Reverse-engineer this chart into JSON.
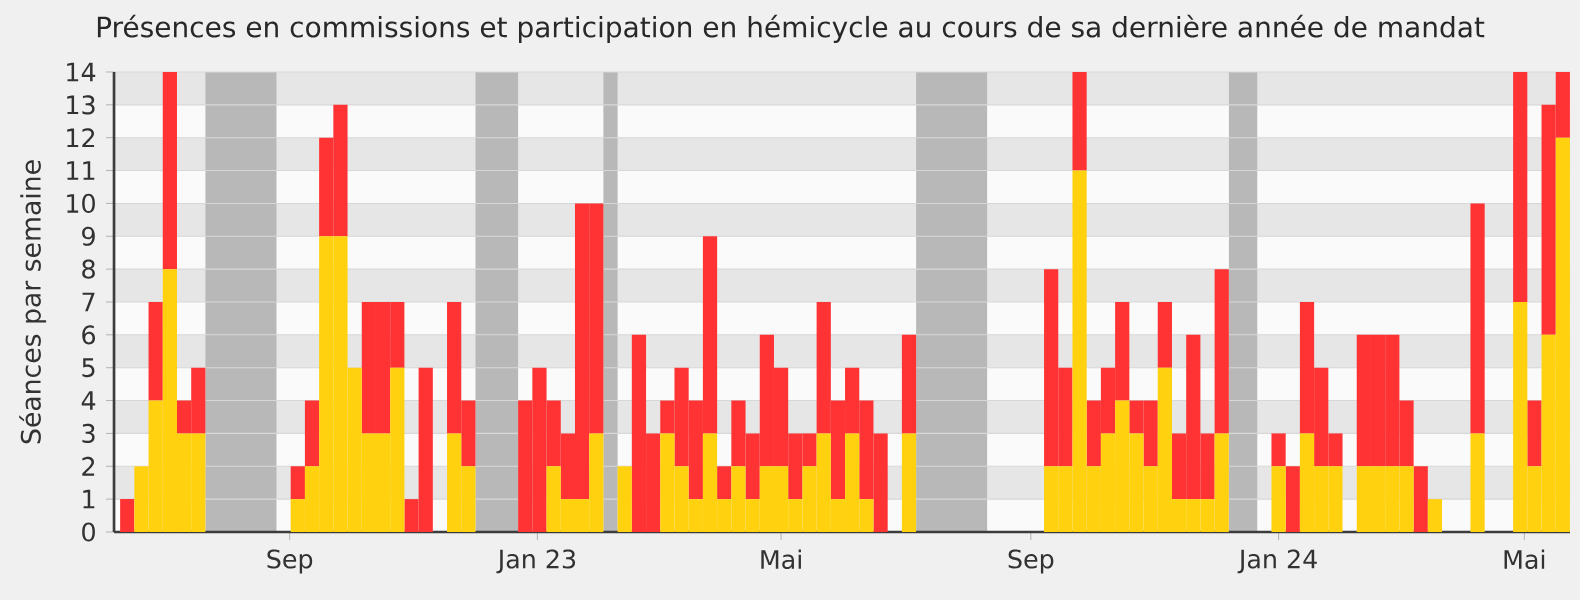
{
  "chart_data": {
    "type": "bar",
    "stacked": true,
    "title": "Présences en commissions et participation en hémicycle au cours de sa dernière année de mandat",
    "ylabel": "Séances par semaine",
    "x": [
      "2022-06-13",
      "2022-06-20",
      "2022-06-27",
      "2022-07-04",
      "2022-07-11",
      "2022-07-18",
      "2022-07-25",
      "2022-08-01",
      "2022-08-08",
      "2022-08-15",
      "2022-08-22",
      "2022-08-29",
      "2022-09-05",
      "2022-09-12",
      "2022-09-19",
      "2022-09-26",
      "2022-10-03",
      "2022-10-10",
      "2022-10-17",
      "2022-10-24",
      "2022-10-31",
      "2022-11-07",
      "2022-11-14",
      "2022-11-21",
      "2022-11-28",
      "2022-12-05",
      "2022-12-12",
      "2022-12-19",
      "2022-12-26",
      "2023-01-02",
      "2023-01-09",
      "2023-01-16",
      "2023-01-23",
      "2023-01-30",
      "2023-02-06",
      "2023-02-13",
      "2023-02-20",
      "2023-02-27",
      "2023-03-06",
      "2023-03-13",
      "2023-03-20",
      "2023-03-27",
      "2023-04-03",
      "2023-04-10",
      "2023-04-17",
      "2023-04-24",
      "2023-05-01",
      "2023-05-08",
      "2023-05-15",
      "2023-05-22",
      "2023-05-29",
      "2023-06-05",
      "2023-06-12",
      "2023-06-19",
      "2023-06-26",
      "2023-07-03",
      "2023-07-10",
      "2023-07-17",
      "2023-07-24",
      "2023-07-31",
      "2023-08-07",
      "2023-08-14",
      "2023-08-21",
      "2023-08-28",
      "2023-09-04",
      "2023-09-11",
      "2023-09-18",
      "2023-09-25",
      "2023-10-02",
      "2023-10-09",
      "2023-10-16",
      "2023-10-23",
      "2023-10-30",
      "2023-11-06",
      "2023-11-13",
      "2023-11-20",
      "2023-11-27",
      "2023-12-04",
      "2023-12-11",
      "2023-12-18",
      "2023-12-25",
      "2024-01-01",
      "2024-01-08",
      "2024-01-15",
      "2024-01-22",
      "2024-01-29",
      "2024-02-05",
      "2024-02-12",
      "2024-02-19",
      "2024-02-26",
      "2024-03-04",
      "2024-03-11",
      "2024-03-18",
      "2024-03-25",
      "2024-04-01",
      "2024-04-08",
      "2024-04-15",
      "2024-04-22",
      "2024-04-29",
      "2024-05-06",
      "2024-05-13",
      "2024-05-20"
    ],
    "series": [
      {
        "color": "#ffd10f",
        "values": [
          0,
          2,
          4,
          8,
          3,
          3,
          0,
          0,
          0,
          0,
          0,
          0,
          1,
          2,
          9,
          9,
          5,
          3,
          3,
          5,
          0,
          0,
          0,
          3,
          2,
          0,
          0,
          0,
          0,
          0,
          2,
          1,
          1,
          3,
          0,
          2,
          0,
          0,
          3,
          2,
          1,
          3,
          1,
          2,
          1,
          2,
          2,
          1,
          2,
          3,
          1,
          3,
          1,
          0,
          0,
          3,
          0,
          0,
          0,
          0,
          0,
          0,
          0,
          0,
          0,
          2,
          2,
          11,
          2,
          3,
          4,
          3,
          2,
          5,
          1,
          1,
          1,
          3,
          0,
          0,
          0,
          2,
          0,
          3,
          2,
          2,
          0,
          2,
          2,
          2,
          2,
          0,
          1,
          0,
          0,
          3,
          0,
          0,
          7,
          2,
          6,
          12
        ]
      },
      {
        "color": "#ff3333",
        "values": [
          1,
          0,
          3,
          6,
          1,
          2,
          0,
          0,
          0,
          0,
          0,
          0,
          1,
          2,
          3,
          4,
          0,
          4,
          4,
          2,
          1,
          5,
          0,
          4,
          2,
          0,
          0,
          0,
          4,
          5,
          2,
          2,
          9,
          7,
          0,
          0,
          6,
          3,
          1,
          3,
          3,
          6,
          1,
          2,
          2,
          4,
          3,
          2,
          1,
          4,
          3,
          2,
          3,
          3,
          0,
          3,
          0,
          0,
          0,
          0,
          0,
          0,
          0,
          0,
          0,
          6,
          3,
          3,
          2,
          2,
          3,
          1,
          2,
          2,
          2,
          5,
          2,
          5,
          0,
          0,
          0,
          1,
          2,
          4,
          3,
          1,
          0,
          4,
          4,
          4,
          2,
          2,
          0,
          0,
          0,
          7,
          0,
          0,
          7,
          2,
          7,
          2
        ]
      }
    ],
    "bands": [
      {
        "axis": "x",
        "from": "2022-07-21T12:00",
        "to": "2022-08-25T12:00",
        "color": "#b8b8b8"
      },
      {
        "axis": "x",
        "from": "2022-12-01T12:00",
        "to": "2022-12-22T12:00",
        "color": "#b8b8b8"
      },
      {
        "axis": "x",
        "from": "2023-02-02T12:00",
        "to": "2023-02-09T12:00",
        "color": "#b8b8b8"
      },
      {
        "axis": "x",
        "from": "2023-07-06T12:00",
        "to": "2023-08-10T12:00",
        "color": "#b8b8b8"
      },
      {
        "axis": "x",
        "from": "2023-12-07T12:00",
        "to": "2023-12-21T12:00",
        "color": "#b8b8b8"
      }
    ],
    "xlim": [
      "2022-06-06T12:00",
      "2024-05-23T12:00"
    ],
    "xticks": [
      {
        "value": "2022-09-01",
        "label": "Sep"
      },
      {
        "value": "2023-01-01",
        "label": "Jan 23"
      },
      {
        "value": "2023-05-01",
        "label": "Mai"
      },
      {
        "value": "2023-09-01",
        "label": "Sep"
      },
      {
        "value": "2024-01-01",
        "label": "Jan 24"
      },
      {
        "value": "2024-05-01",
        "label": "Mai"
      }
    ],
    "ylim": [
      0,
      14
    ],
    "yticks": [
      0,
      1,
      2,
      3,
      4,
      5,
      6,
      7,
      8,
      9,
      10,
      11,
      12,
      13,
      14
    ],
    "grid": "y"
  }
}
